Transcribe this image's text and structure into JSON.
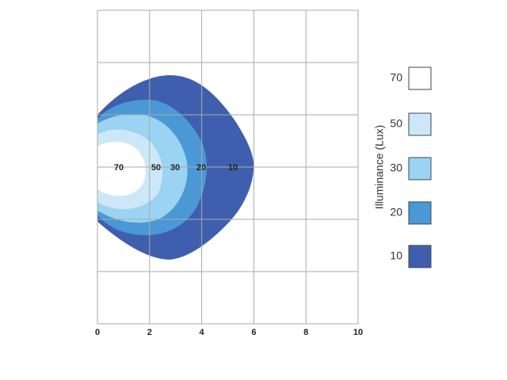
{
  "chart_data": {
    "type": "contour",
    "xlim": [
      0,
      10
    ],
    "xticks": [
      0,
      2,
      4,
      6,
      8,
      10
    ],
    "legend_title": "Illuminance (Lux)",
    "levels": [
      70,
      50,
      30,
      20,
      10
    ],
    "colors": [
      "#ffffff",
      "#cce8f8",
      "#9bd4f2",
      "#4a98d6",
      "#3f5fae"
    ],
    "grid": true
  }
}
